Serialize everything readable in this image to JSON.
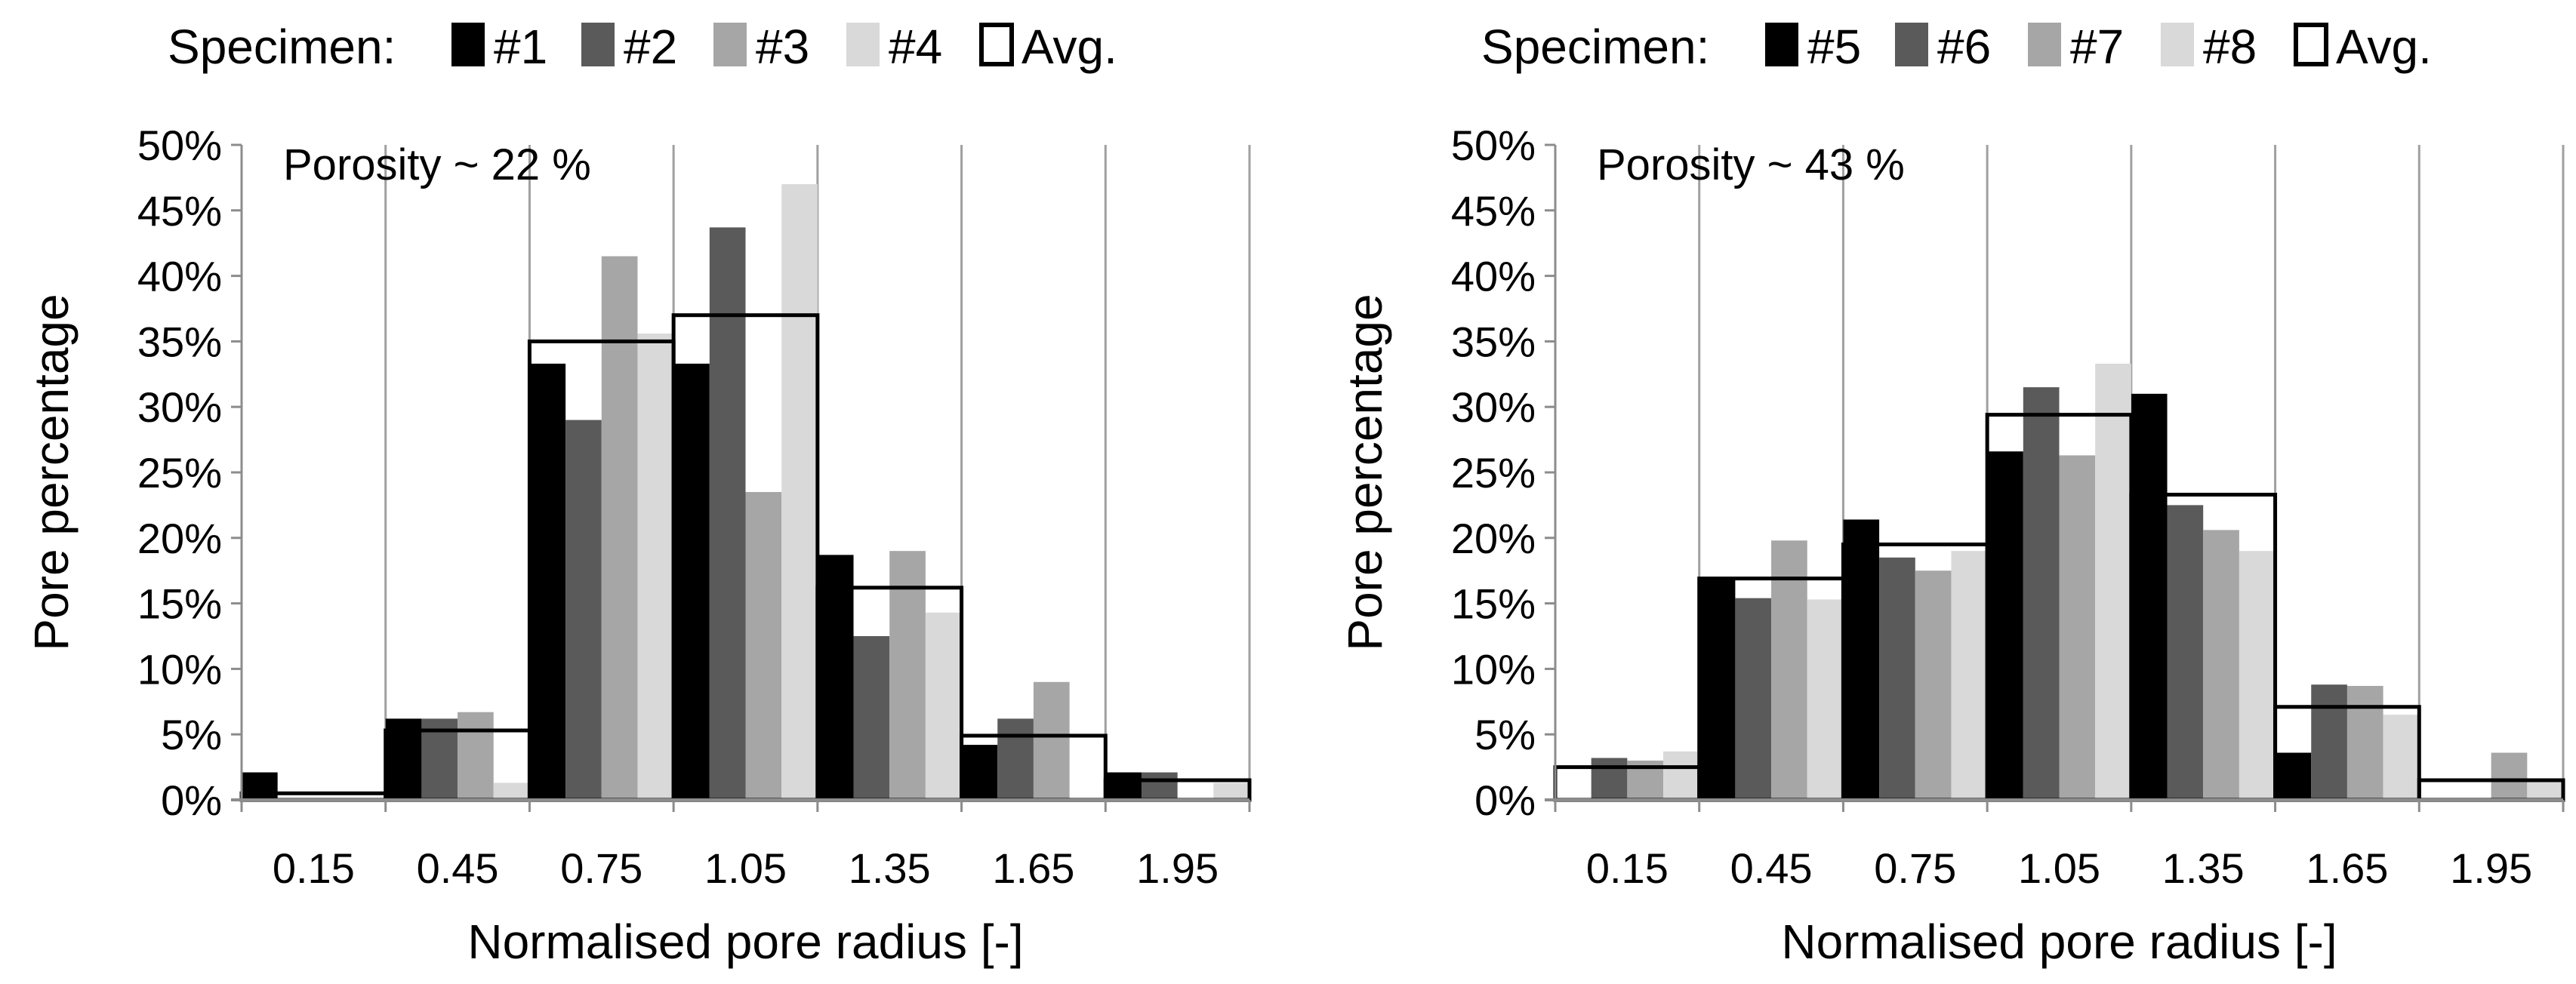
{
  "chart_data": [
    {
      "type": "bar",
      "annotation": "Porosity ~ 22 %",
      "xlabel": "Normalised pore radius [-]",
      "ylabel": "Pore percentage",
      "ylim": [
        0,
        50
      ],
      "yticks": [
        "0%",
        "5%",
        "10%",
        "15%",
        "20%",
        "25%",
        "30%",
        "35%",
        "40%",
        "45%",
        "50%"
      ],
      "categories": [
        "0.15",
        "0.45",
        "0.75",
        "1.05",
        "1.35",
        "1.65",
        "1.95"
      ],
      "legend_title": "Specimen:",
      "series": [
        {
          "name": "#1",
          "color": "#000000",
          "values": [
            2.1,
            6.2,
            33.3,
            33.3,
            18.7,
            4.2,
            2.1
          ]
        },
        {
          "name": "#2",
          "color": "#5a5a5a",
          "values": [
            0,
            6.2,
            29.0,
            43.7,
            12.5,
            6.2,
            2.1
          ]
        },
        {
          "name": "#3",
          "color": "#a6a6a6",
          "values": [
            0,
            6.7,
            41.5,
            23.5,
            19.0,
            9.0,
            0
          ]
        },
        {
          "name": "#4",
          "color": "#d9d9d9",
          "values": [
            0,
            1.3,
            35.6,
            47.0,
            14.3,
            0,
            1.3
          ]
        }
      ],
      "average": {
        "name": "Avg.",
        "values": [
          0.5,
          5.3,
          35.0,
          37.0,
          16.2,
          4.9,
          1.5
        ]
      }
    },
    {
      "type": "bar",
      "annotation": "Porosity ~ 43 %",
      "xlabel": "Normalised pore radius [-]",
      "ylabel": "Pore percentage",
      "ylim": [
        0,
        50
      ],
      "yticks": [
        "0%",
        "5%",
        "10%",
        "15%",
        "20%",
        "25%",
        "30%",
        "35%",
        "40%",
        "45%",
        "50%"
      ],
      "categories": [
        "0.15",
        "0.45",
        "0.75",
        "1.05",
        "1.35",
        "1.65",
        "1.95"
      ],
      "legend_title": "Specimen:",
      "series": [
        {
          "name": "#5",
          "color": "#000000",
          "values": [
            0,
            16.9,
            21.4,
            26.6,
            31.0,
            3.6,
            0
          ]
        },
        {
          "name": "#6",
          "color": "#5a5a5a",
          "values": [
            3.2,
            15.4,
            18.5,
            31.5,
            22.5,
            8.8,
            0
          ]
        },
        {
          "name": "#7",
          "color": "#a6a6a6",
          "values": [
            3.0,
            19.8,
            17.5,
            26.3,
            20.6,
            8.7,
            3.6
          ]
        },
        {
          "name": "#8",
          "color": "#d9d9d9",
          "values": [
            3.7,
            15.3,
            19.0,
            33.3,
            19.0,
            6.5,
            1.5
          ]
        }
      ],
      "average": {
        "name": "Avg.",
        "values": [
          2.5,
          16.9,
          19.5,
          29.4,
          23.3,
          7.1,
          1.5
        ]
      }
    }
  ]
}
